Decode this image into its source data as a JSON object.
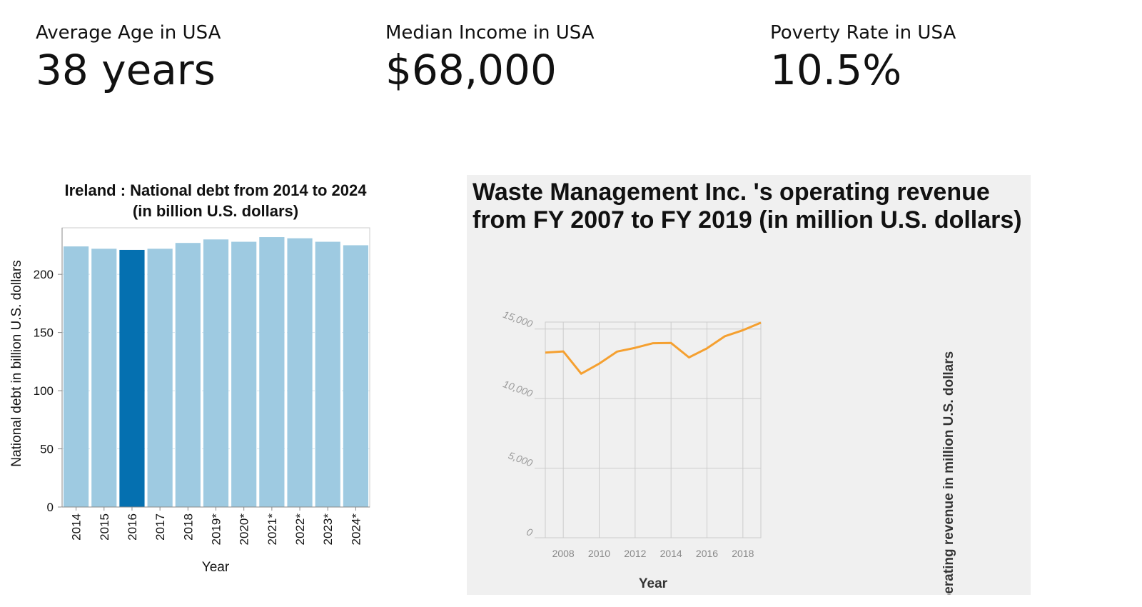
{
  "kpis": [
    {
      "label": "Average Age in USA",
      "value": "38 years"
    },
    {
      "label": "Median Income in USA",
      "value": "$68,000"
    },
    {
      "label": "Poverty Rate in USA",
      "value": "10.5%"
    }
  ],
  "chart_data": [
    {
      "type": "bar",
      "title_lines": [
        "Ireland : National debt from 2014 to 2024",
        "(in billion U.S. dollars)"
      ],
      "xlabel": "Year",
      "ylabel": "National debt in billion U.S. dollars",
      "categories": [
        "2014",
        "2015",
        "2016",
        "2017",
        "2018",
        "2019*",
        "2020*",
        "2021*",
        "2022*",
        "2023*",
        "2024*"
      ],
      "values": [
        224,
        222,
        221,
        222,
        227,
        230,
        228,
        232,
        231,
        228,
        225
      ],
      "highlight_index": 2,
      "ylim": [
        0,
        240
      ],
      "yticks": [
        0,
        50,
        100,
        150,
        200
      ],
      "grid": true,
      "colors": {
        "bar": "#9ecae1",
        "highlight": "#0570b0",
        "grid": "#d7e6ef",
        "axis": "#888888"
      }
    },
    {
      "type": "line",
      "title": "Waste Management Inc. 's operating revenue from FY 2007 to FY 2019 (in million U.S. dollars)",
      "xlabel": "Year",
      "ylabel": "Operating revenue in million U.S. dollars",
      "x": [
        2007,
        2008,
        2009,
        2010,
        2011,
        2012,
        2013,
        2014,
        2015,
        2016,
        2017,
        2018,
        2019
      ],
      "values": [
        13310,
        13388,
        11791,
        12515,
        13378,
        13649,
        13983,
        13996,
        12961,
        13609,
        14485,
        14914,
        15455
      ],
      "xticks": [
        "2008",
        "2010",
        "2012",
        "2014",
        "2016",
        "2018"
      ],
      "yticks": [
        "0",
        "5,000",
        "10,000",
        "15,000"
      ],
      "ylim": [
        0,
        15500
      ],
      "xlim": [
        2007,
        2019
      ],
      "grid": true,
      "colors": {
        "line": "#f5a030",
        "grid": "#cccccc",
        "panel": "#f0f0f0"
      }
    }
  ]
}
